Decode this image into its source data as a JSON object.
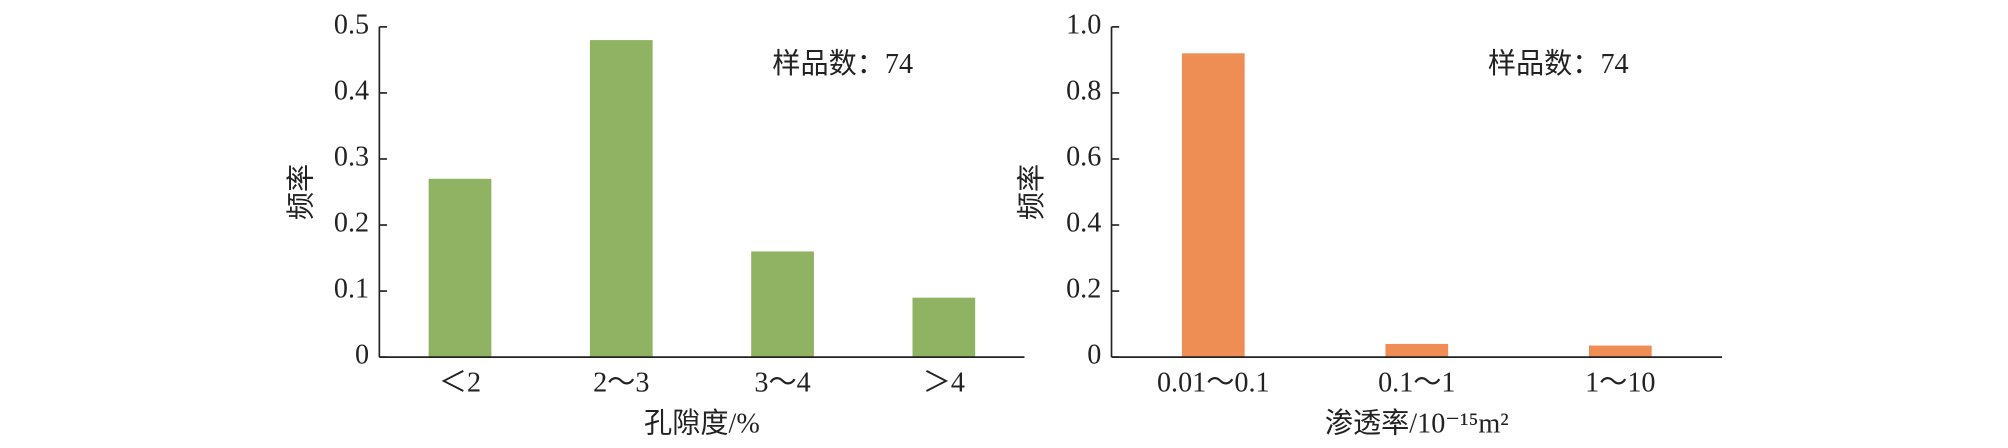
{
  "chart_data": [
    {
      "type": "bar",
      "categories": [
        "＜2",
        "2～3",
        "3～4",
        "＞4"
      ],
      "values": [
        0.27,
        0.48,
        0.16,
        0.09
      ],
      "color": "#8fb363",
      "ylim": [
        0,
        0.5
      ],
      "yticks": [
        0,
        0.1,
        0.2,
        0.3,
        0.4,
        0.5
      ],
      "ylabel": "频率",
      "xlabel": "孔隙度/%",
      "annotation": "样品数：74"
    },
    {
      "type": "bar",
      "categories": [
        "0.01～0.1",
        "0.1～1",
        "1～10"
      ],
      "values": [
        0.92,
        0.04,
        0.035
      ],
      "color": "#ee8e55",
      "ylim": [
        0,
        1
      ],
      "yticks": [
        0,
        0.2,
        0.4,
        0.6,
        0.8,
        {
          "value": 1,
          "label": "1.0"
        }
      ],
      "ylabel": "频率",
      "xlabel": "渗透率/10⁻¹⁵m²",
      "annotation": "样品数：74"
    }
  ]
}
